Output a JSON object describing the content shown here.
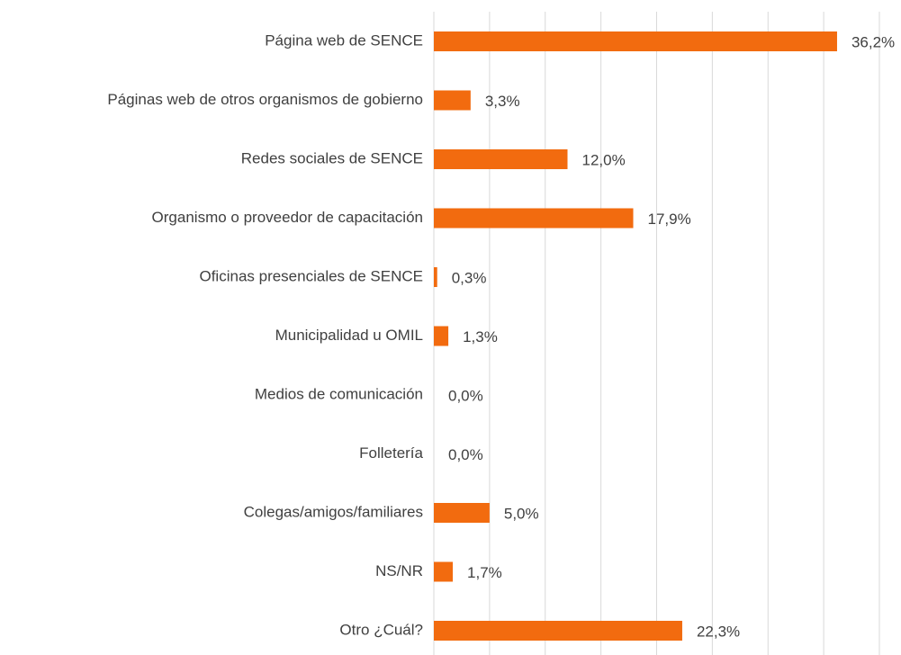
{
  "chart_data": {
    "type": "bar",
    "orientation": "horizontal",
    "categories": [
      "Página web de SENCE",
      "Páginas web de otros organismos de gobierno",
      "Redes sociales de SENCE",
      "Organismo o proveedor de capacitación",
      "Oficinas presenciales de SENCE",
      "Municipalidad u OMIL",
      "Medios de comunicación",
      "Folletería",
      "Colegas/amigos/familiares",
      "NS/NR",
      "Otro ¿Cuál?"
    ],
    "values": [
      36.2,
      3.3,
      12.0,
      17.9,
      0.3,
      1.3,
      0,
      0,
      5.0,
      1.7,
      22.3
    ],
    "value_labels": [
      "36,2%",
      "3,3%",
      "12,0%",
      "17,9%",
      "0,3%",
      "1,3%",
      "0,0%",
      "0,0%",
      "5,0%",
      "1,7%",
      "22,3%"
    ],
    "color": "#f26b0f",
    "xlim": [
      0,
      40
    ],
    "xticks": [
      0,
      5,
      10,
      15,
      20,
      25,
      30,
      35,
      40
    ],
    "grid": true
  }
}
